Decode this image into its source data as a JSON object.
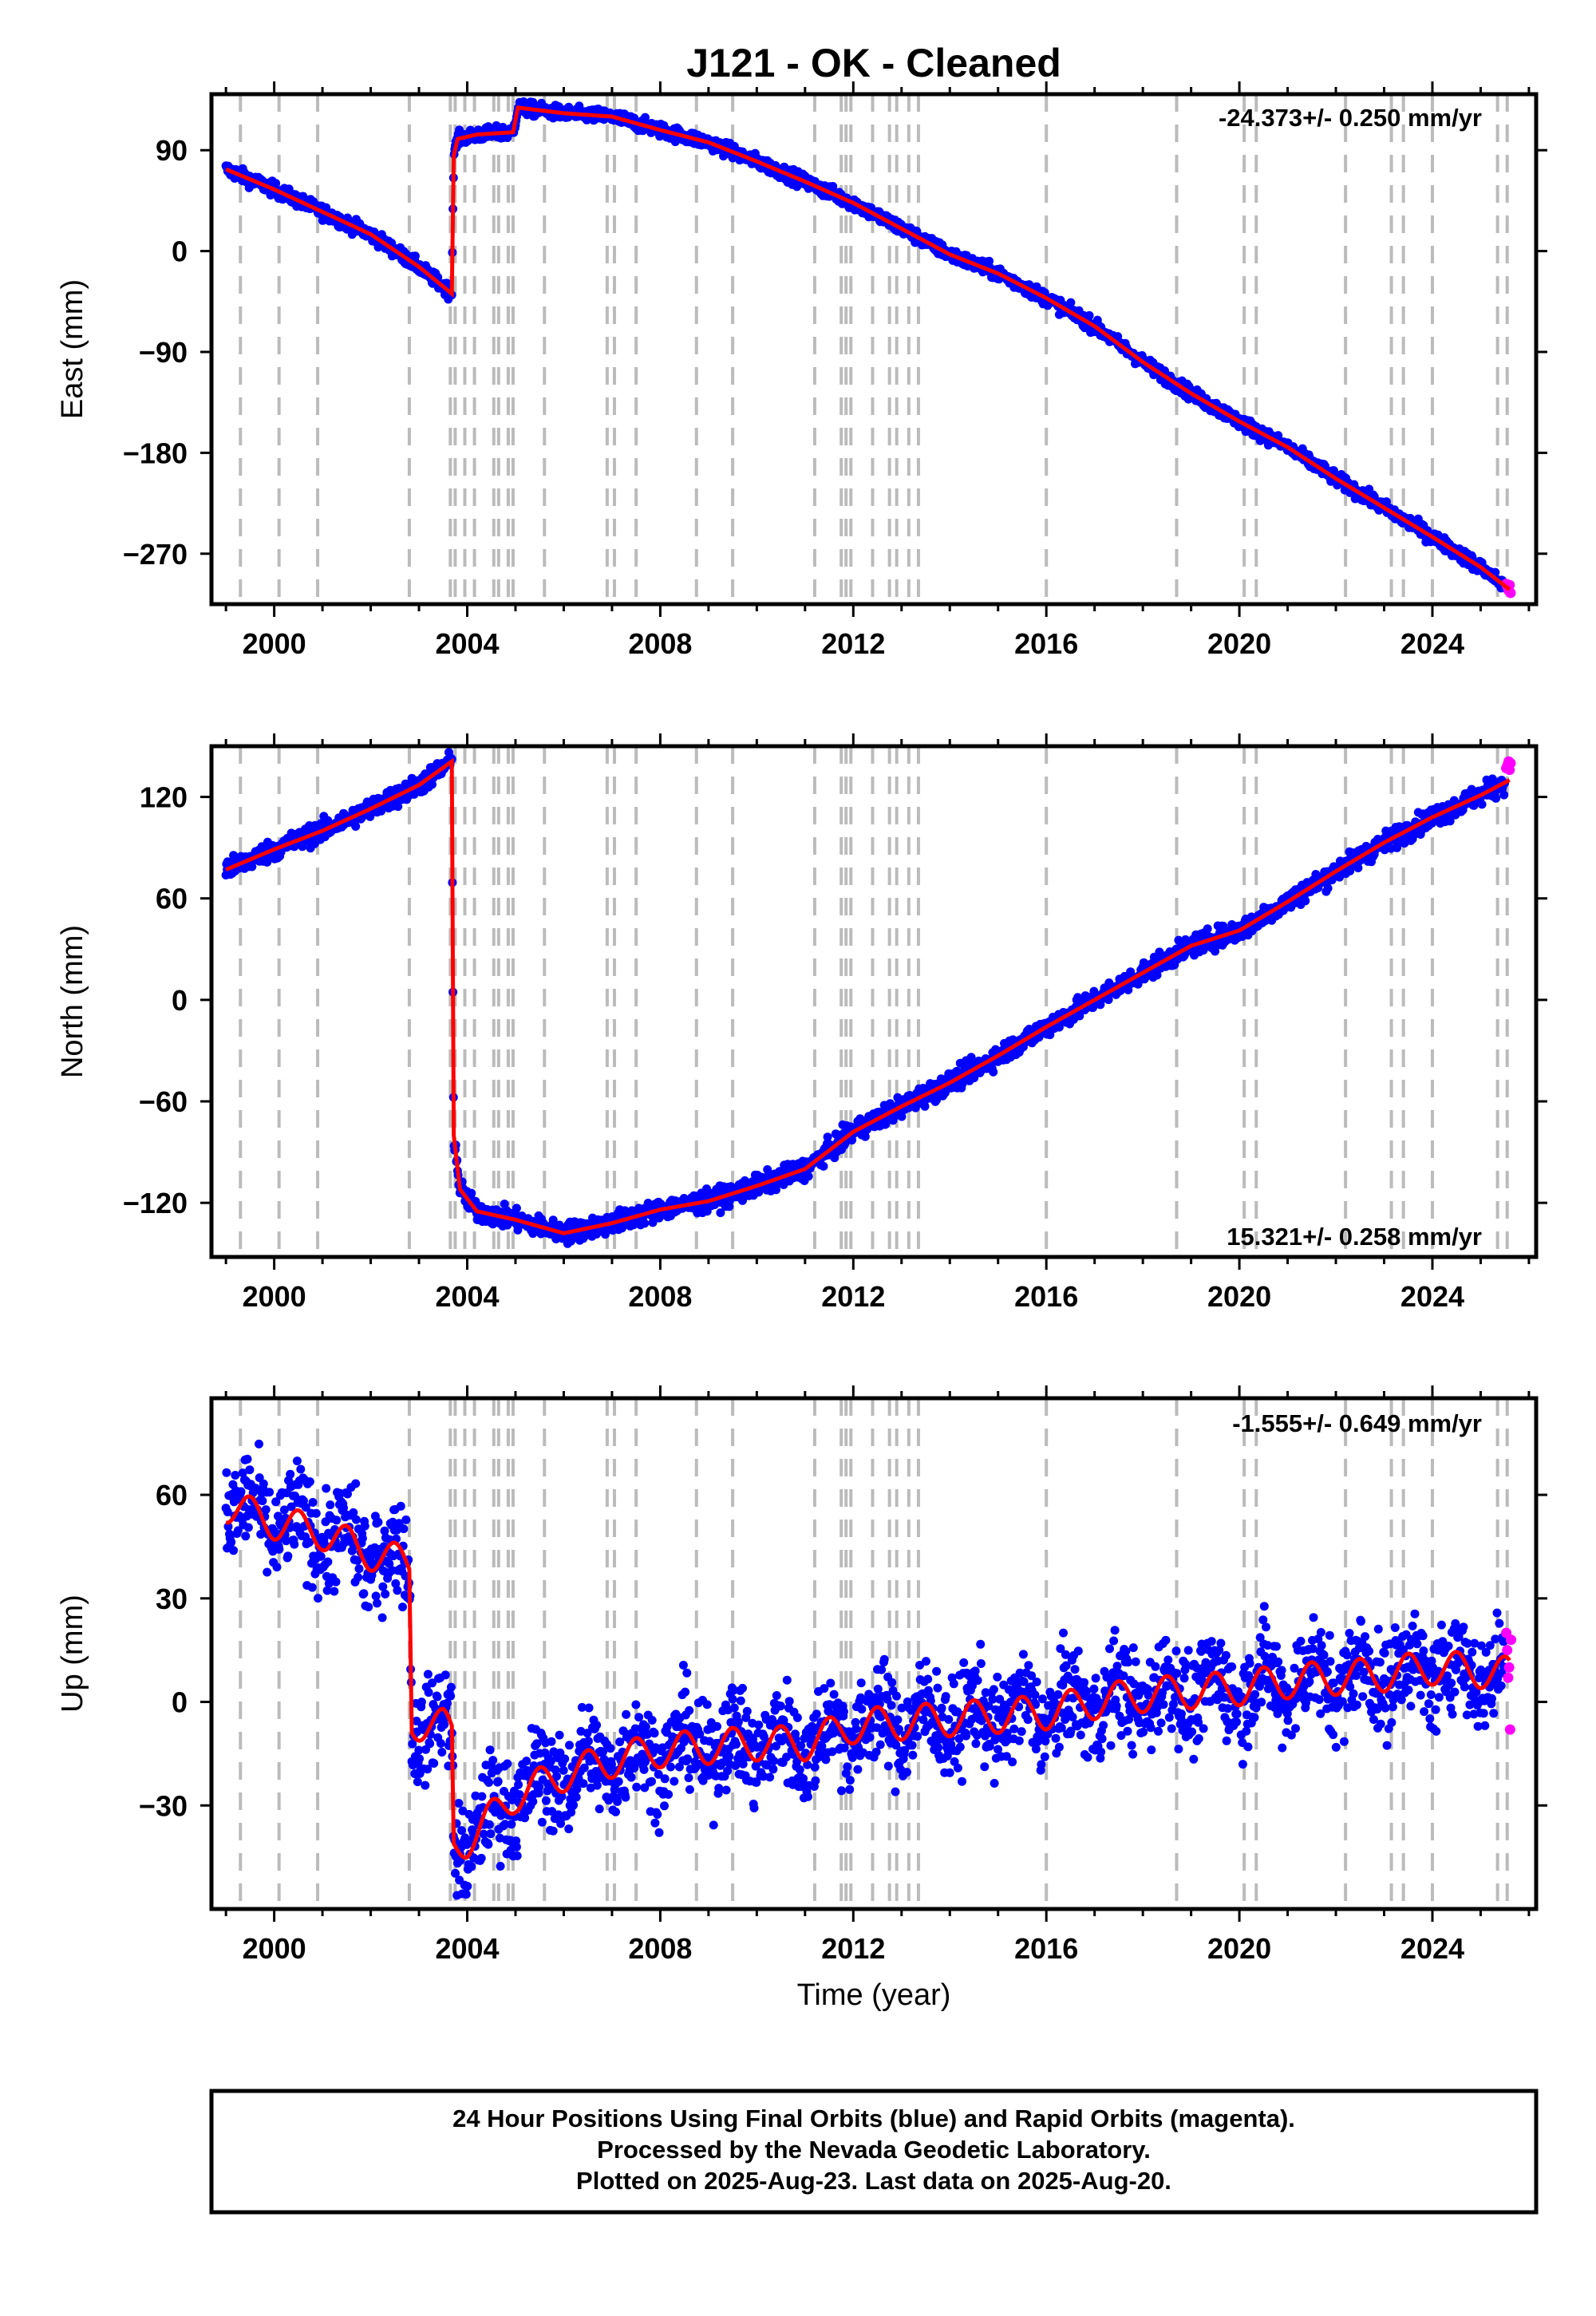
{
  "title": "J121  - OK - Cleaned",
  "x_axis_label": "Time (year)",
  "footer": [
    "24 Hour Positions Using Final Orbits (blue) and Rapid Orbits (magenta).",
    "Processed by the Nevada Geodetic Laboratory.",
    "Plotted on 2025-Aug-23. Last data on 2025-Aug-20."
  ],
  "colors": {
    "final_orbits": "#0000ff",
    "rapid_orbits": "#ff00ff",
    "model_fit": "#ff0000",
    "event_lines": "#bbbbbb"
  },
  "chart_data": [
    {
      "type": "scatter",
      "panel": "east",
      "ylabel": "East (mm)",
      "xlim": [
        1998.7,
        2026.15
      ],
      "ylim": [
        -315,
        140
      ],
      "yticks": [
        90,
        0,
        -90,
        -180,
        -270
      ],
      "xticks": [
        2000,
        2004,
        2008,
        2012,
        2016,
        2020,
        2024
      ],
      "rate_annotation": "-24.373+/- 0.250 mm/yr",
      "model_knots": [
        [
          1999.0,
          73
        ],
        [
          2000.0,
          55
        ],
        [
          2001.0,
          35
        ],
        [
          2002.0,
          15
        ],
        [
          2003.0,
          -14
        ],
        [
          2003.68,
          -38
        ],
        [
          2003.72,
          85
        ],
        [
          2003.8,
          100
        ],
        [
          2004.2,
          104
        ],
        [
          2004.95,
          106
        ],
        [
          2005.05,
          128
        ],
        [
          2006.0,
          123
        ],
        [
          2007.0,
          120
        ],
        [
          2008.0,
          108
        ],
        [
          2009.0,
          97
        ],
        [
          2010.0,
          80
        ],
        [
          2011.0,
          62
        ],
        [
          2012.0,
          43
        ],
        [
          2013.0,
          20
        ],
        [
          2014.0,
          -3
        ],
        [
          2015.0,
          -20
        ],
        [
          2016.0,
          -42
        ],
        [
          2017.0,
          -67
        ],
        [
          2018.0,
          -99
        ],
        [
          2019.0,
          -127
        ],
        [
          2020.0,
          -152
        ],
        [
          2021.0,
          -175
        ],
        [
          2022.0,
          -203
        ],
        [
          2023.0,
          -229
        ],
        [
          2024.0,
          -255
        ],
        [
          2025.0,
          -282
        ],
        [
          2025.6,
          -302
        ]
      ],
      "noise_mm": 3,
      "rapid_points": [
        [
          2025.53,
          -297
        ],
        [
          2025.56,
          -300
        ],
        [
          2025.58,
          -303
        ],
        [
          2025.6,
          -298
        ],
        [
          2025.62,
          -305
        ]
      ]
    },
    {
      "type": "scatter",
      "panel": "north",
      "ylabel": "North (mm)",
      "xlim": [
        1998.7,
        2026.15
      ],
      "ylim": [
        -152,
        150
      ],
      "yticks": [
        120,
        60,
        0,
        -60,
        -120
      ],
      "xticks": [
        2000,
        2004,
        2008,
        2012,
        2016,
        2020,
        2024
      ],
      "rate_annotation": "15.321+/- 0.258 mm/yr",
      "model_knots": [
        [
          1999.0,
          77
        ],
        [
          2000.0,
          89
        ],
        [
          2001.0,
          100
        ],
        [
          2002.0,
          113
        ],
        [
          2003.0,
          127
        ],
        [
          2003.68,
          141
        ],
        [
          2003.72,
          -80
        ],
        [
          2003.85,
          -112
        ],
        [
          2004.2,
          -125
        ],
        [
          2005.0,
          -130
        ],
        [
          2006.0,
          -138
        ],
        [
          2007.0,
          -132
        ],
        [
          2008.0,
          -124
        ],
        [
          2009.0,
          -119
        ],
        [
          2010.0,
          -110
        ],
        [
          2011.0,
          -100
        ],
        [
          2012.0,
          -78
        ],
        [
          2013.0,
          -63
        ],
        [
          2014.0,
          -49
        ],
        [
          2015.0,
          -33
        ],
        [
          2016.0,
          -16
        ],
        [
          2017.0,
          0
        ],
        [
          2018.0,
          16
        ],
        [
          2019.0,
          32
        ],
        [
          2020.0,
          41
        ],
        [
          2021.0,
          58
        ],
        [
          2022.0,
          76
        ],
        [
          2023.0,
          93
        ],
        [
          2024.0,
          108
        ],
        [
          2025.0,
          121
        ],
        [
          2025.6,
          130
        ]
      ],
      "noise_mm": 3,
      "rapid_points": [
        [
          2025.53,
          137
        ],
        [
          2025.56,
          139
        ],
        [
          2025.58,
          141
        ],
        [
          2025.6,
          136
        ],
        [
          2025.62,
          140
        ]
      ]
    },
    {
      "type": "scatter",
      "panel": "up",
      "ylabel": "Up (mm)",
      "xlim": [
        1998.7,
        2026.15
      ],
      "ylim": [
        -60,
        88
      ],
      "yticks": [
        60,
        30,
        0,
        -30
      ],
      "xticks": [
        2000,
        2004,
        2008,
        2012,
        2016,
        2020,
        2024
      ],
      "rate_annotation": "-1.555+/- 0.649 mm/yr",
      "model_knots": [
        [
          1999.0,
          57
        ],
        [
          2000.0,
          52
        ],
        [
          2001.0,
          49
        ],
        [
          2002.0,
          43
        ],
        [
          2002.8,
          40
        ],
        [
          2002.85,
          -6
        ],
        [
          2003.5,
          -7
        ],
        [
          2003.68,
          -9
        ],
        [
          2003.72,
          -42
        ],
        [
          2004.0,
          -40
        ],
        [
          2005.0,
          -27
        ],
        [
          2006.0,
          -21
        ],
        [
          2007.0,
          -17
        ],
        [
          2008.0,
          -14
        ],
        [
          2009.0,
          -13
        ],
        [
          2010.0,
          -12
        ],
        [
          2011.0,
          -12
        ],
        [
          2012.0,
          -7
        ],
        [
          2013.0,
          -6
        ],
        [
          2014.0,
          -5
        ],
        [
          2015.0,
          -4
        ],
        [
          2016.0,
          -3
        ],
        [
          2017.0,
          0
        ],
        [
          2018.0,
          2
        ],
        [
          2019.0,
          3
        ],
        [
          2020.0,
          4
        ],
        [
          2021.0,
          6
        ],
        [
          2022.0,
          7
        ],
        [
          2023.0,
          8
        ],
        [
          2024.0,
          10
        ],
        [
          2025.0,
          9
        ],
        [
          2025.6,
          8
        ]
      ],
      "seasonal_amplitude_mm": 5,
      "noise_mm": 7,
      "rapid_points": [
        [
          2025.53,
          20
        ],
        [
          2025.55,
          15
        ],
        [
          2025.57,
          7
        ],
        [
          2025.59,
          10
        ],
        [
          2025.61,
          -8
        ],
        [
          2025.63,
          18
        ]
      ]
    }
  ],
  "event_lines_years": [
    1999.3,
    2000.1,
    2000.9,
    2002.8,
    2003.65,
    2003.75,
    2003.95,
    2004.15,
    2004.55,
    2004.65,
    2004.85,
    2004.95,
    2005.6,
    2006.9,
    2007.05,
    2007.5,
    2008.75,
    2009.5,
    2011.2,
    2011.75,
    2011.85,
    2011.95,
    2012.4,
    2012.75,
    2012.9,
    2013.15,
    2013.35,
    2016.0,
    2018.7,
    2020.1,
    2020.35,
    2022.2,
    2023.15,
    2023.4,
    2024.0,
    2025.35,
    2025.55
  ]
}
